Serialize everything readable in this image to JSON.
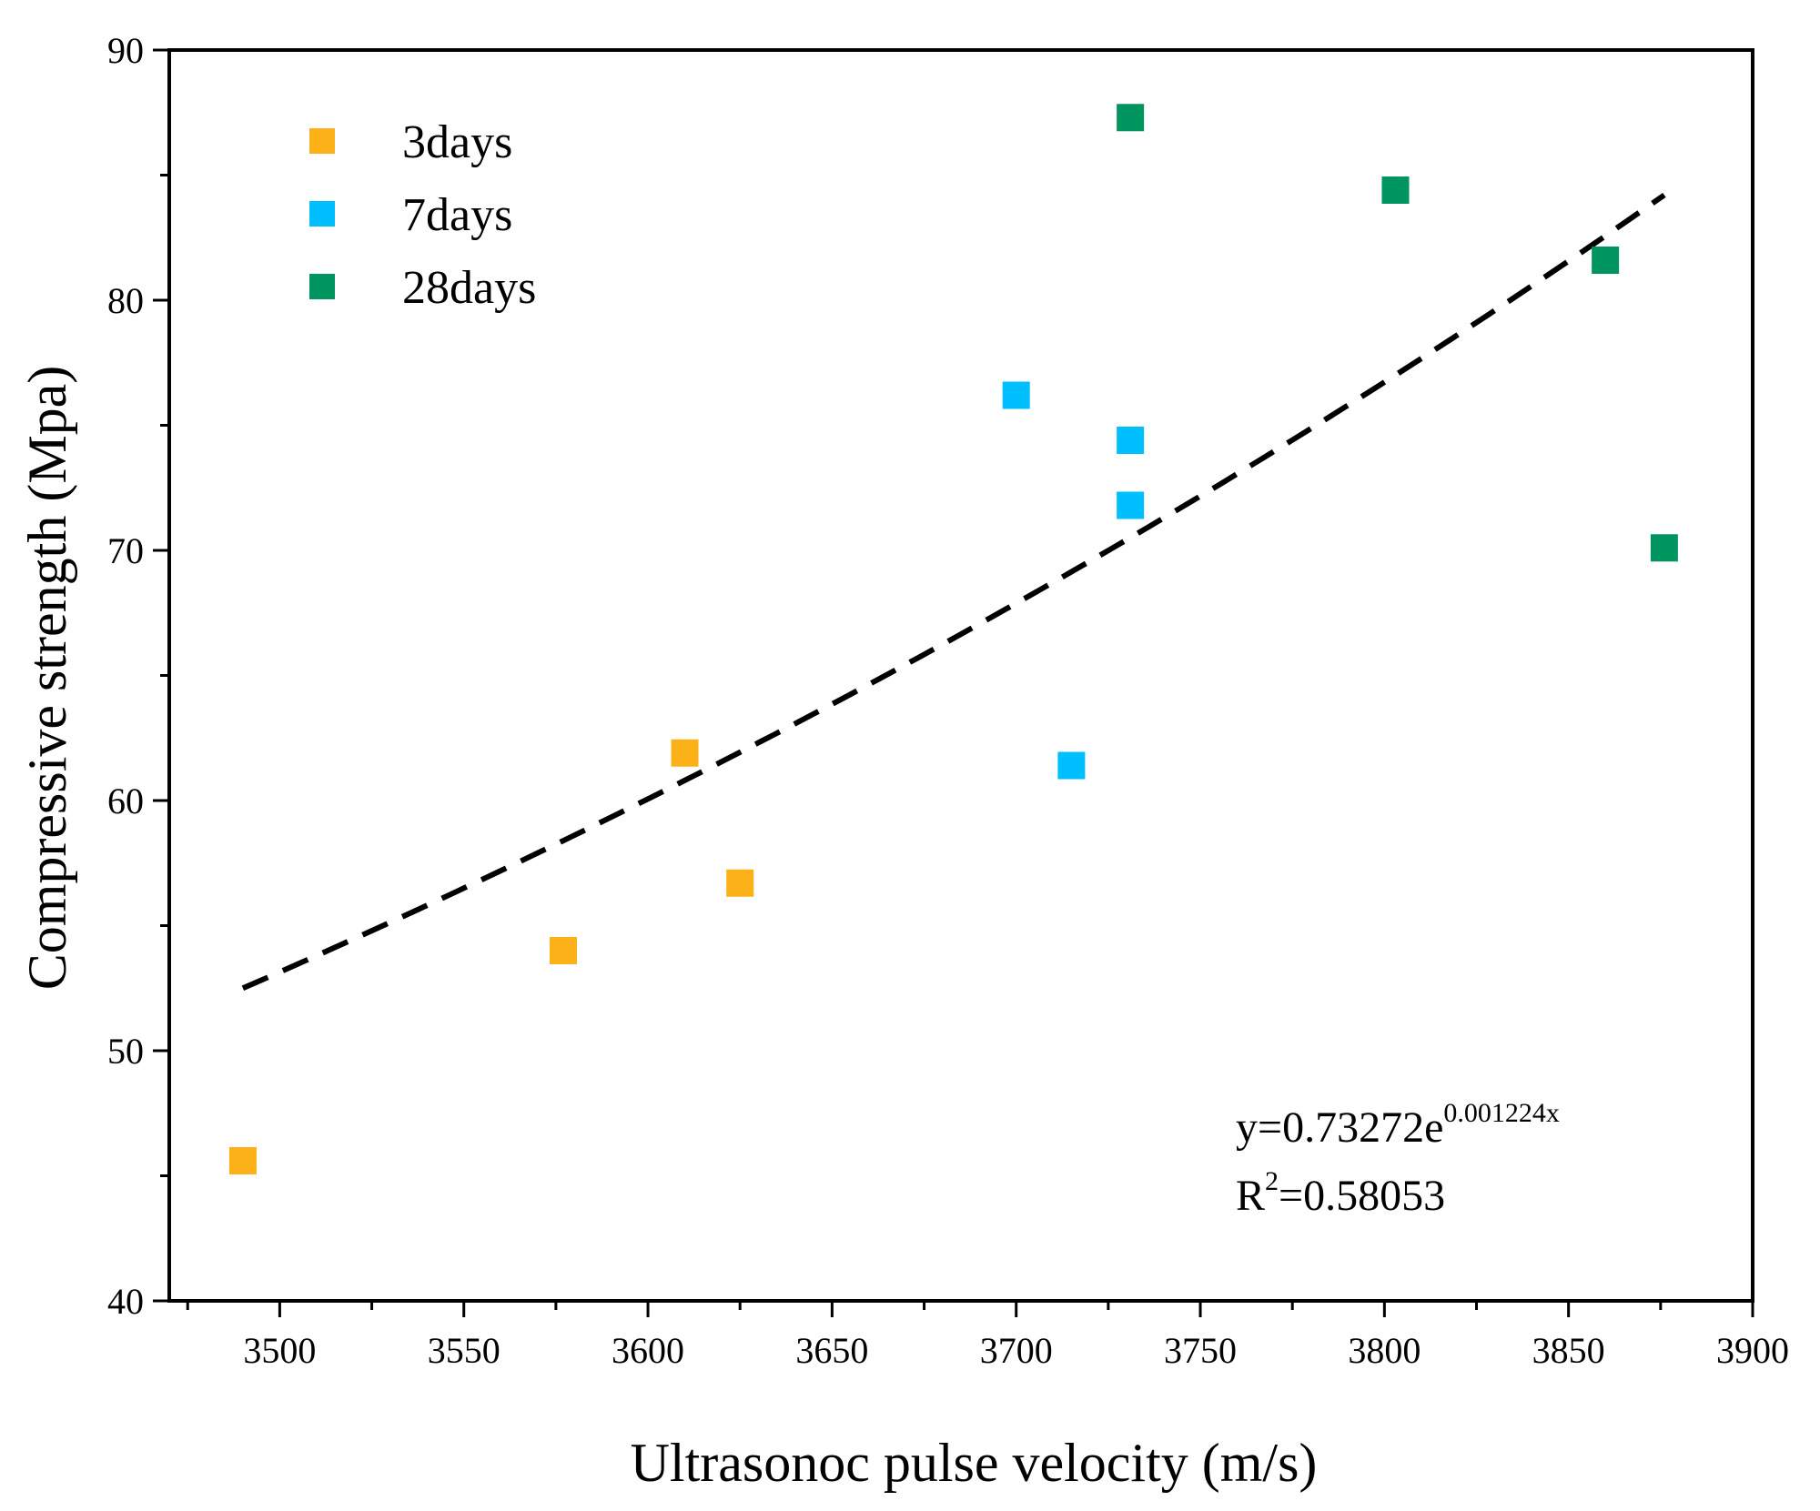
{
  "chart_data": {
    "type": "scatter",
    "xlabel": "Ultrasonoc pulse velocity (m/s)",
    "ylabel": "Compressive strength (Mpa)",
    "xlim": [
      3470,
      3900
    ],
    "ylim": [
      40,
      90
    ],
    "xticks": [
      3500,
      3550,
      3600,
      3650,
      3700,
      3750,
      3800,
      3850,
      3900
    ],
    "xtick_labels": [
      "3500",
      "3550",
      "3600",
      "3650",
      "3700",
      "3750",
      "3800",
      "3850",
      "3900"
    ],
    "yticks": [
      40,
      50,
      60,
      70,
      80,
      90
    ],
    "ytick_labels": [
      "40",
      "50",
      "60",
      "70",
      "80",
      "90"
    ],
    "legend_position": "top-left",
    "series": [
      {
        "name": "3days",
        "color": "#FBB117",
        "marker": "square",
        "points": [
          [
            3490,
            45.6
          ],
          [
            3577,
            54.0
          ],
          [
            3610,
            61.9
          ],
          [
            3625,
            56.7
          ]
        ]
      },
      {
        "name": "7days",
        "color": "#00BFFF",
        "marker": "square",
        "points": [
          [
            3700,
            76.2
          ],
          [
            3715,
            61.4
          ],
          [
            3731,
            74.4
          ],
          [
            3731,
            71.8
          ]
        ]
      },
      {
        "name": "28days",
        "color": "#00945E",
        "marker": "square",
        "points": [
          [
            3731,
            87.3
          ],
          [
            3803,
            84.4
          ],
          [
            3860,
            81.6
          ],
          [
            3876,
            70.1
          ]
        ]
      }
    ],
    "fit": {
      "kind": "exponential",
      "a": 0.73272,
      "b": 0.001224,
      "x_range": [
        3490,
        3876
      ],
      "style": "dashed",
      "color": "#000000",
      "equation_main": "y=0.73272e",
      "equation_exponent": "0.001224x",
      "r2_prefix": "R",
      "r2_power": "2",
      "r2_value": "=0.58053"
    }
  }
}
